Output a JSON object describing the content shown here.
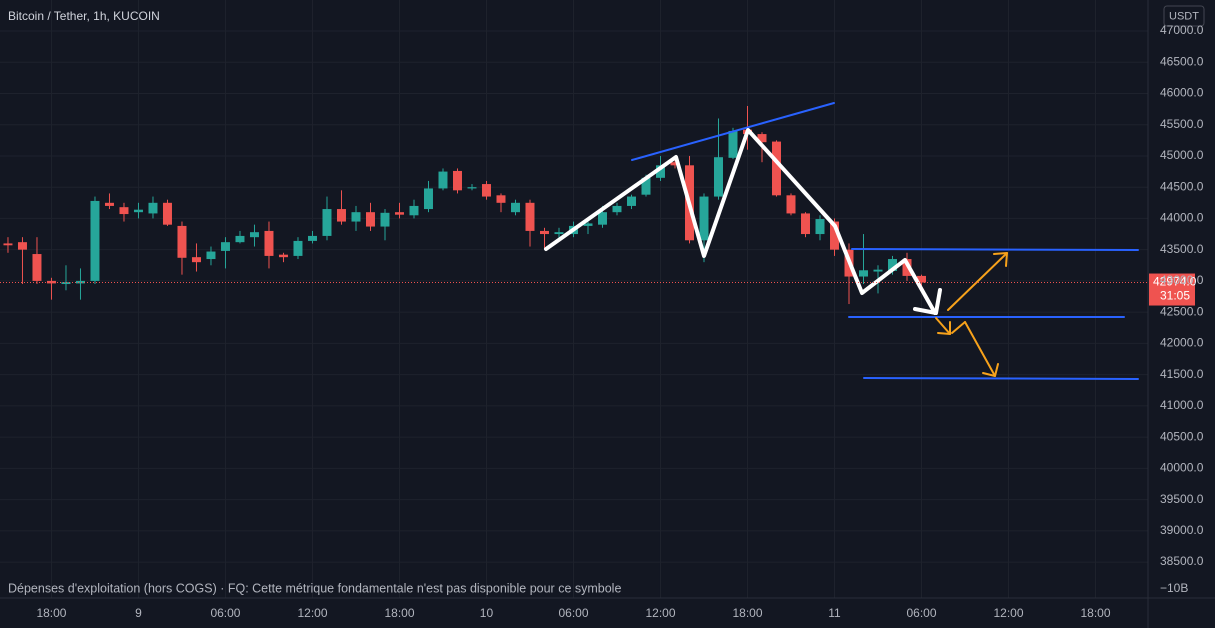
{
  "chart_data": {
    "type": "candlestick",
    "title": "Bitcoin / Tether, 1h, KUCOIN",
    "currency": "USDT",
    "up_color": "#26a69a",
    "down_color": "#ef5350",
    "open": [
      43600,
      43620,
      43430,
      43000,
      42950,
      42960,
      43000,
      44250,
      44180,
      44100,
      44080,
      44250,
      43880,
      43380,
      43350,
      43480,
      43620,
      43700,
      43800,
      43420,
      43400,
      43640,
      43720,
      44150,
      43950,
      44100,
      43870,
      44100,
      44050,
      44150,
      44480,
      44760,
      44480,
      44550,
      44370,
      44100,
      44250,
      43800,
      43750,
      43750,
      43880,
      43900,
      44100,
      44200,
      44380,
      44650,
      44900,
      44850,
      43650,
      44350,
      44970,
      45420,
      45350,
      45230,
      44370,
      44080,
      43750,
      43950,
      43500,
      43070,
      43150,
      43160,
      43350,
      43080
    ],
    "high": [
      43700,
      43700,
      43700,
      43050,
      43250,
      43200,
      44350,
      44400,
      44250,
      44250,
      44350,
      44300,
      43950,
      43600,
      43550,
      43700,
      43800,
      43900,
      43950,
      43450,
      43700,
      43800,
      44350,
      44450,
      44200,
      44250,
      44150,
      44250,
      44300,
      44600,
      44800,
      44800,
      44550,
      44600,
      44400,
      44300,
      44300,
      43850,
      43850,
      43950,
      43950,
      44200,
      44250,
      44380,
      44700,
      45000,
      45000,
      45000,
      44400,
      45600,
      45450,
      45800,
      45380,
      45250,
      44400,
      44100,
      44050,
      44000,
      43600,
      43750,
      43250,
      43400,
      43450,
      43100
    ],
    "low": [
      43450,
      42950,
      42950,
      42700,
      42850,
      42700,
      42950,
      44150,
      43950,
      44000,
      44000,
      43880,
      43100,
      43150,
      43250,
      43200,
      43600,
      43550,
      43200,
      43300,
      43350,
      43600,
      43650,
      43900,
      43800,
      43800,
      43650,
      44000,
      44000,
      44100,
      44450,
      44400,
      44450,
      44300,
      44100,
      44050,
      43550,
      43500,
      43650,
      43700,
      43750,
      43850,
      44050,
      44150,
      44350,
      44600,
      44800,
      43600,
      43300,
      44300,
      44950,
      45100,
      44900,
      44350,
      44050,
      43700,
      43650,
      43400,
      42630,
      42950,
      42800,
      43100,
      43000,
      42900
    ],
    "close": [
      43570,
      43500,
      43000,
      42960,
      42980,
      43000,
      44280,
      44200,
      44070,
      44140,
      44250,
      43900,
      43370,
      43300,
      43470,
      43620,
      43720,
      43780,
      43400,
      43380,
      43640,
      43720,
      44150,
      43950,
      44100,
      43870,
      44090,
      44060,
      44200,
      44480,
      44750,
      44450,
      44500,
      44350,
      44250,
      44250,
      43800,
      43750,
      43780,
      43880,
      43920,
      44100,
      44200,
      44350,
      44650,
      44850,
      44850,
      43650,
      44350,
      44980,
      45400,
      45350,
      45220,
      44370,
      44080,
      43750,
      43990,
      43500,
      43070,
      43170,
      43180,
      43350,
      43080,
      42974
    ],
    "ylim": [
      38293,
      47496
    ],
    "yticks": [
      {
        "value": 38500,
        "label": "38500.0"
      },
      {
        "value": 39000,
        "label": "39000.0"
      },
      {
        "value": 39500,
        "label": "39500.0"
      },
      {
        "value": 40000,
        "label": "40000.0"
      },
      {
        "value": 40500,
        "label": "40500.0"
      },
      {
        "value": 41000,
        "label": "41000.0"
      },
      {
        "value": 41500,
        "label": "41500.0"
      },
      {
        "value": 42000,
        "label": "42000.0"
      },
      {
        "value": 42500,
        "label": "42500.0"
      },
      {
        "value": 43000,
        "label": "43000.0"
      },
      {
        "value": 43500,
        "label": "43500.0"
      },
      {
        "value": 44000,
        "label": "44000.0"
      },
      {
        "value": 44500,
        "label": "44500.0"
      },
      {
        "value": 45000,
        "label": "45000.0"
      },
      {
        "value": 45500,
        "label": "45500.0"
      },
      {
        "value": 46000,
        "label": "46000.0"
      },
      {
        "value": 46500,
        "label": "46500.0"
      },
      {
        "value": 47000,
        "label": "47000.0"
      }
    ],
    "xlim": [
      -0.55,
      78.62
    ],
    "xticks": [
      {
        "value": 3,
        "label": "18:00"
      },
      {
        "value": 9,
        "label": "9"
      },
      {
        "value": 15,
        "label": "06:00"
      },
      {
        "value": 21,
        "label": "12:00"
      },
      {
        "value": 27,
        "label": "18:00"
      },
      {
        "value": 33,
        "label": "10"
      },
      {
        "value": 39,
        "label": "06:00"
      },
      {
        "value": 45,
        "label": "12:00"
      },
      {
        "value": 51,
        "label": "18:00"
      },
      {
        "value": 57,
        "label": "11"
      },
      {
        "value": 63,
        "label": "06:00"
      },
      {
        "value": 69,
        "label": "12:00"
      },
      {
        "value": 75,
        "label": "18:00"
      }
    ],
    "last_price": {
      "value": 42974,
      "label": "42974.0",
      "countdown": "31:05"
    },
    "footer_text": "Dépenses d'exploitation (hors COGS) · FQ: Cette métrique fondamentale n'est pas disponible pour ce symbole",
    "footer_value": "−10B"
  }
}
